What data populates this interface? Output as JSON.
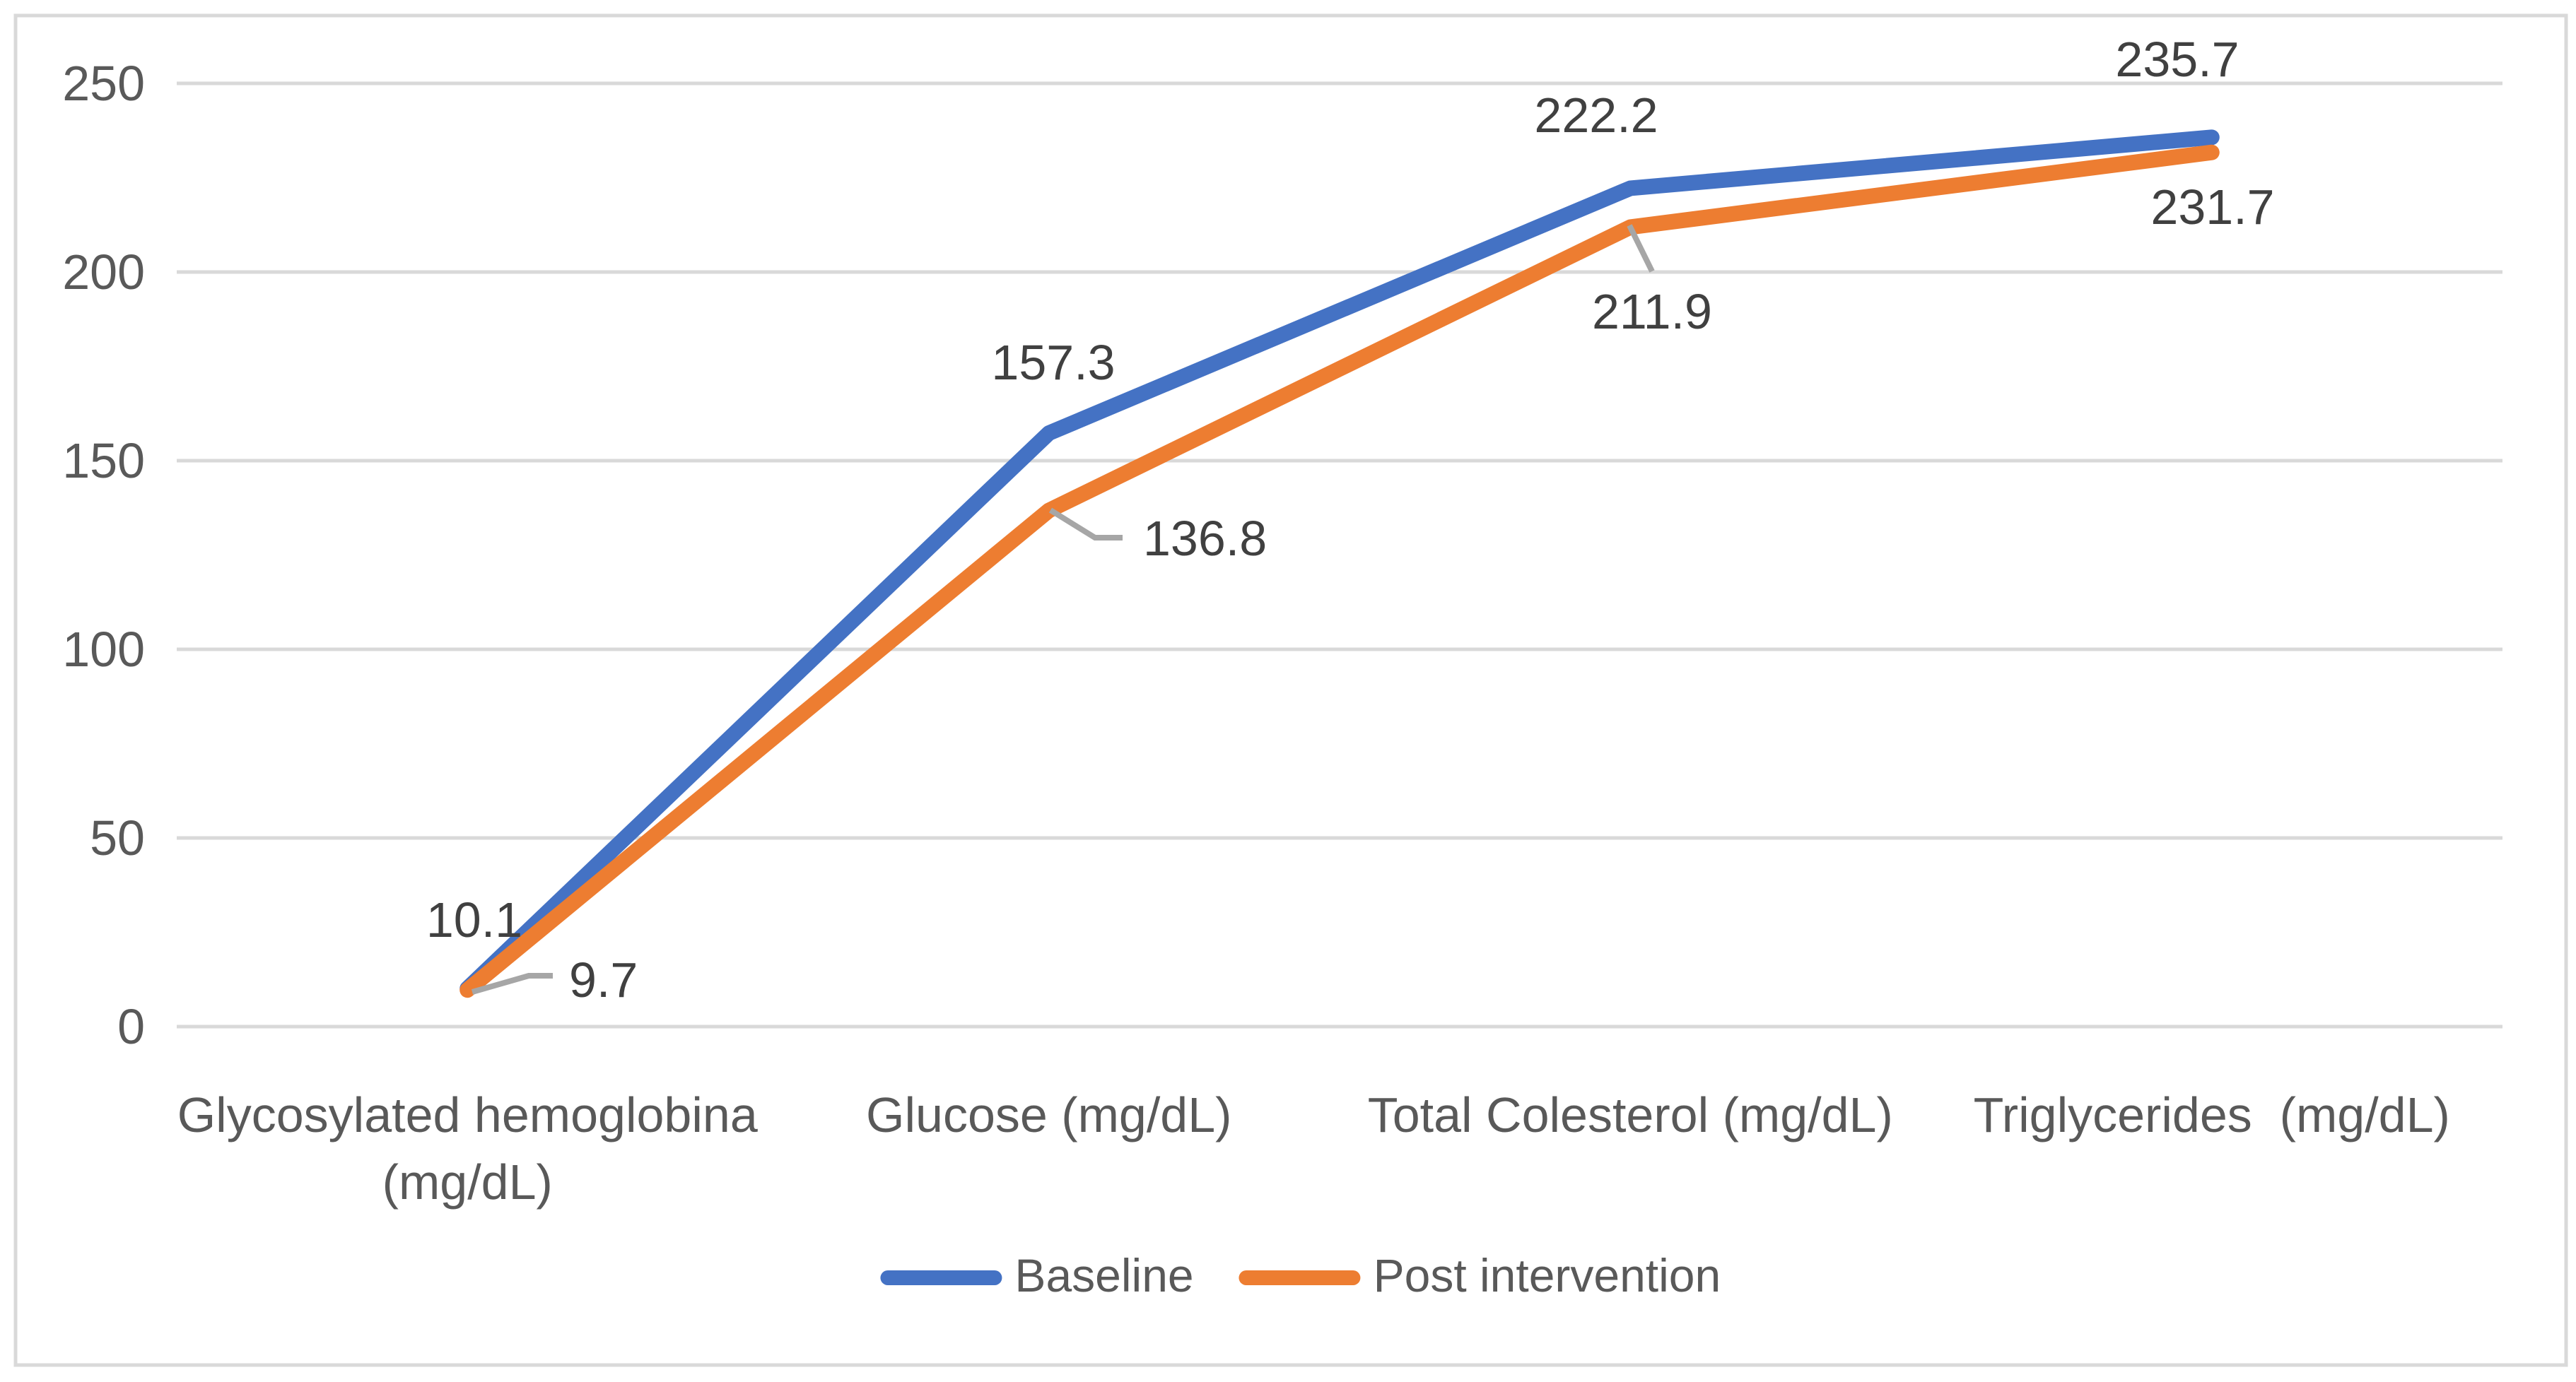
{
  "chart": {
    "background": "#FFFFFF",
    "border_color": "#D9D9D9",
    "gridline_color": "#D9D9D9",
    "axis_text_color": "#595959",
    "data_label_color": "#404040",
    "leader_line_color": "#A6A6A6"
  },
  "chart_data": {
    "type": "line",
    "title": "",
    "categories": [
      "Glycosylated hemoglobina (mg/dL)",
      "Glucose (mg/dL)",
      "Total Colesterol (mg/dL)",
      "Triglycerides  (mg/dL)"
    ],
    "categories_wrapped": [
      [
        "Glycosylated hemoglobina",
        "(mg/dL)"
      ],
      [
        "Glucose (mg/dL)"
      ],
      [
        "Total Colesterol (mg/dL)"
      ],
      [
        "Triglycerides  (mg/dL)"
      ]
    ],
    "series": [
      {
        "name": "Baseline",
        "color": "#4472C4",
        "values": [
          10.1,
          157.3,
          222.2,
          235.7
        ],
        "labels": [
          "10.1",
          "157.3",
          "222.2",
          "235.7"
        ]
      },
      {
        "name": "Post intervention",
        "color": "#ED7D31",
        "values": [
          9.7,
          136.8,
          211.9,
          231.7
        ],
        "labels": [
          "9.7",
          "136.8",
          "211.9",
          "231.7"
        ]
      }
    ],
    "xlabel": "",
    "ylabel": "",
    "ylim": [
      0,
      250
    ],
    "yticks": [
      0,
      50,
      100,
      150,
      200,
      250
    ],
    "ytick_labels": [
      "0",
      "50",
      "100",
      "150",
      "200",
      "250"
    ],
    "grid": true,
    "legend_position": "bottom"
  },
  "legend": {
    "items": [
      {
        "label": "Baseline",
        "color": "#4472C4"
      },
      {
        "label": "Post intervention",
        "color": "#ED7D31"
      }
    ]
  }
}
